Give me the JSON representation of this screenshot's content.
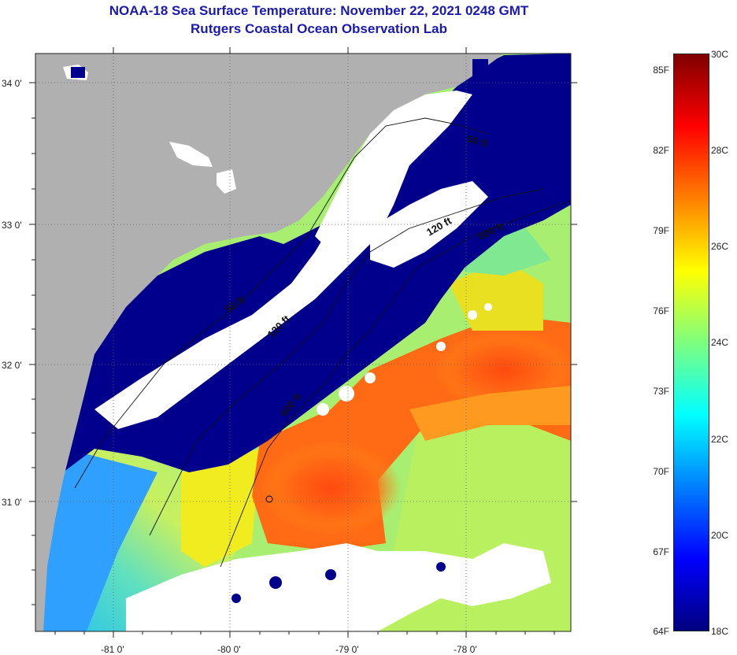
{
  "title": "NOAA-18 Sea Surface Temperature:  November 22, 2021 0248 GMT",
  "subtitle": "Rutgers Coastal Ocean Observation Lab",
  "map": {
    "lon_labels": [
      "-81 0'",
      "-80 0'",
      "-79 0'",
      "-78 0'"
    ],
    "lat_labels": [
      "34 0'",
      "33 0'",
      "32 0'",
      "31 0'"
    ],
    "lon_range": [
      -81.7,
      -77.2
    ],
    "lat_range": [
      30.2,
      34.2
    ],
    "contour_labels": [
      "50 ft",
      "120 ft",
      "600 ft",
      "50 ft",
      "120 ft",
      "600 ft"
    ],
    "colors": {
      "land": "#b0b0b0",
      "cloud": "#ffffff",
      "cold": "#00008c",
      "warm": "#ff5a10"
    }
  },
  "colorbar": {
    "fahrenheit_labels": [
      "85F",
      "82F",
      "79F",
      "76F",
      "73F",
      "70F",
      "67F",
      "64F"
    ],
    "celsius_labels": [
      "30C",
      "28C",
      "26C",
      "24C",
      "22C",
      "20C",
      "18C"
    ],
    "range_c": [
      18,
      30
    ],
    "colors": [
      "#00007f",
      "#0000ff",
      "#007fff",
      "#00ffff",
      "#7fff7f",
      "#ffff00",
      "#ff7f00",
      "#ff0000",
      "#7f0000"
    ]
  }
}
